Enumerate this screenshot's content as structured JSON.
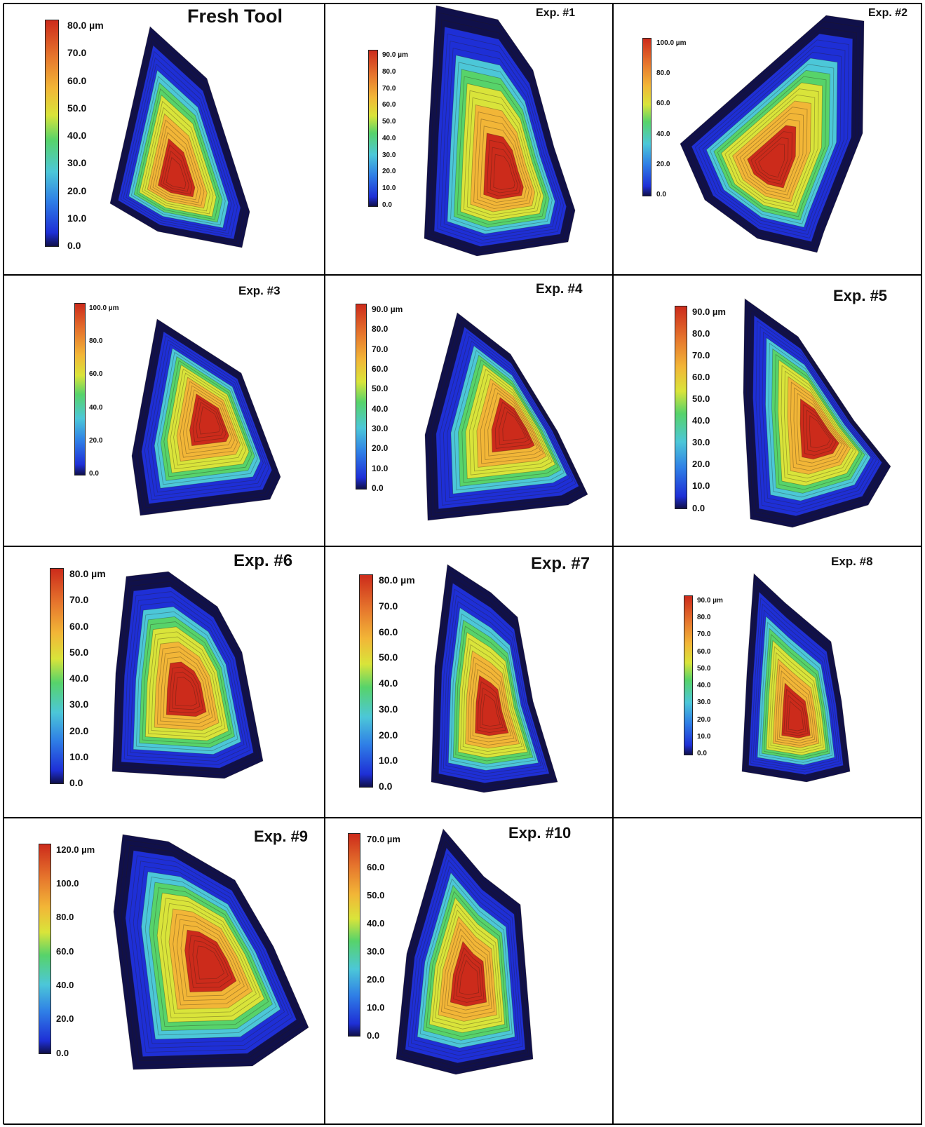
{
  "figure": {
    "panels": [
      {
        "title": "Fresh Tool",
        "unit": "µm",
        "ticks": [
          "80.0",
          "70.0",
          "60.0",
          "50.0",
          "40.0",
          "30.0",
          "20.0",
          "10.0",
          "0.0"
        ]
      },
      {
        "title": "Exp. #1",
        "unit": "µm",
        "ticks": [
          "90.0",
          "80.0",
          "70.0",
          "60.0",
          "50.0",
          "40.0",
          "30.0",
          "20.0",
          "10.0",
          "0.0"
        ]
      },
      {
        "title": "Exp. #2",
        "unit": "µm",
        "ticks": [
          "100.0",
          "80.0",
          "60.0",
          "40.0",
          "20.0",
          "0.0"
        ]
      },
      {
        "title": "Exp. #3",
        "unit": "µm",
        "ticks": [
          "100.0",
          "80.0",
          "60.0",
          "40.0",
          "20.0",
          "0.0"
        ]
      },
      {
        "title": "Exp. #4",
        "unit": "µm",
        "ticks": [
          "90.0",
          "80.0",
          "70.0",
          "60.0",
          "50.0",
          "40.0",
          "30.0",
          "20.0",
          "10.0",
          "0.0"
        ]
      },
      {
        "title": "Exp. #5",
        "unit": "µm",
        "ticks": [
          "90.0",
          "80.0",
          "70.0",
          "60.0",
          "50.0",
          "40.0",
          "30.0",
          "20.0",
          "10.0",
          "0.0"
        ]
      },
      {
        "title": "Exp. #6",
        "unit": "µm",
        "ticks": [
          "80.0",
          "70.0",
          "60.0",
          "50.0",
          "40.0",
          "30.0",
          "20.0",
          "10.0",
          "0.0"
        ]
      },
      {
        "title": "Exp. #7",
        "unit": "µm",
        "ticks": [
          "80.0",
          "70.0",
          "60.0",
          "50.0",
          "40.0",
          "30.0",
          "20.0",
          "10.0",
          "0.0"
        ]
      },
      {
        "title": "Exp. #8",
        "unit": "µm",
        "ticks": [
          "90.0",
          "80.0",
          "70.0",
          "60.0",
          "50.0",
          "40.0",
          "30.0",
          "20.0",
          "10.0",
          "0.0"
        ]
      },
      {
        "title": "Exp. #9",
        "unit": "µm",
        "ticks": [
          "120.0",
          "100.0",
          "80.0",
          "60.0",
          "40.0",
          "20.0",
          "0.0"
        ]
      },
      {
        "title": "Exp. #10",
        "unit": "µm",
        "ticks": [
          "70.0",
          "60.0",
          "50.0",
          "40.0",
          "30.0",
          "20.0",
          "10.0",
          "0.0"
        ]
      }
    ]
  },
  "colors": {
    "low": "#10104a",
    "blue": "#1e2fd6",
    "cyan": "#4cc7d8",
    "green": "#57d36a",
    "yellow": "#d9e43a",
    "orange": "#f2b637",
    "high": "#cc2b1b"
  }
}
